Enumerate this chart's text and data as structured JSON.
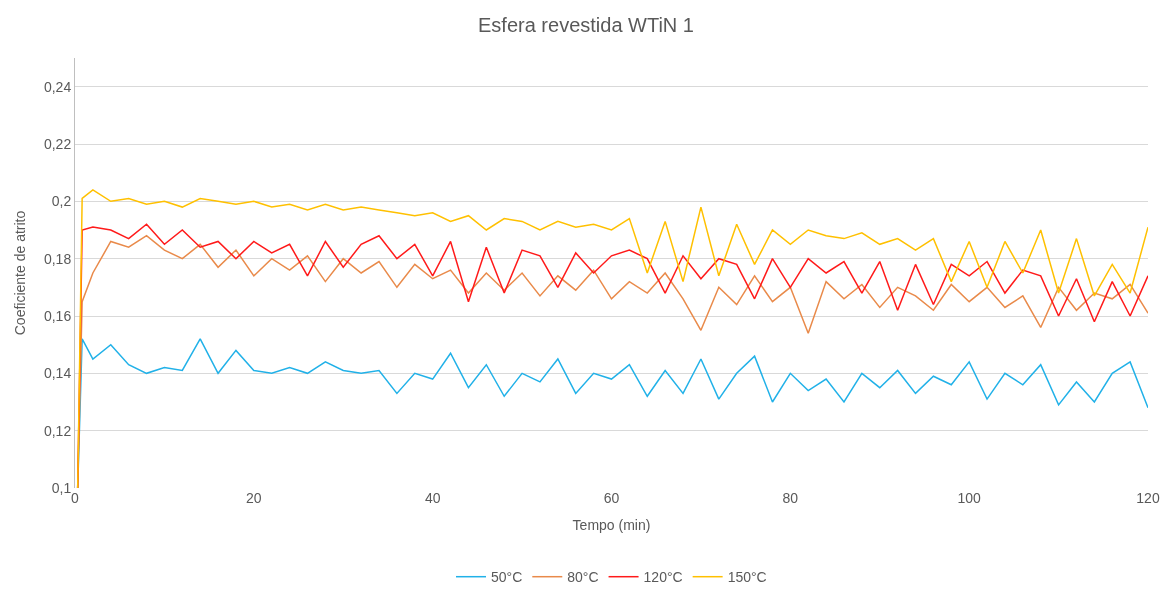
{
  "chart_data": {
    "type": "line",
    "title": "Esfera revestida WTiN 1",
    "xlabel": "Tempo (min)",
    "ylabel": "Coeficiente de atrito",
    "x": [
      0.3,
      0.8,
      2,
      4,
      6,
      8,
      10,
      12,
      14,
      16,
      18,
      20,
      22,
      24,
      26,
      28,
      30,
      32,
      34,
      36,
      38,
      40,
      42,
      44,
      46,
      48,
      50,
      52,
      54,
      56,
      58,
      60,
      62,
      64,
      66,
      68,
      70,
      72,
      74,
      76,
      78,
      80,
      82,
      84,
      86,
      88,
      90,
      92,
      94,
      96,
      98,
      100,
      102,
      104,
      106,
      108,
      110,
      112,
      114,
      116,
      118,
      120
    ],
    "series": [
      {
        "name": "50°C",
        "color": "#21b1e8",
        "values": [
          0.1,
          0.152,
          0.145,
          0.15,
          0.143,
          0.14,
          0.142,
          0.141,
          0.152,
          0.14,
          0.148,
          0.141,
          0.14,
          0.142,
          0.14,
          0.144,
          0.141,
          0.14,
          0.141,
          0.133,
          0.14,
          0.138,
          0.147,
          0.135,
          0.143,
          0.132,
          0.14,
          0.137,
          0.145,
          0.133,
          0.14,
          0.138,
          0.143,
          0.132,
          0.141,
          0.133,
          0.145,
          0.131,
          0.14,
          0.146,
          0.13,
          0.14,
          0.134,
          0.138,
          0.13,
          0.14,
          0.135,
          0.141,
          0.133,
          0.139,
          0.136,
          0.144,
          0.131,
          0.14,
          0.136,
          0.143,
          0.129,
          0.137,
          0.13,
          0.14,
          0.144,
          0.128
        ]
      },
      {
        "name": "80°C",
        "color": "#e98a4a",
        "values": [
          0.1,
          0.165,
          0.175,
          0.186,
          0.184,
          0.188,
          0.183,
          0.18,
          0.185,
          0.177,
          0.183,
          0.174,
          0.18,
          0.176,
          0.181,
          0.172,
          0.18,
          0.175,
          0.179,
          0.17,
          0.178,
          0.173,
          0.176,
          0.168,
          0.175,
          0.169,
          0.175,
          0.167,
          0.174,
          0.169,
          0.176,
          0.166,
          0.172,
          0.168,
          0.175,
          0.166,
          0.155,
          0.17,
          0.164,
          0.174,
          0.165,
          0.17,
          0.154,
          0.172,
          0.166,
          0.171,
          0.163,
          0.17,
          0.167,
          0.162,
          0.171,
          0.165,
          0.17,
          0.163,
          0.167,
          0.156,
          0.17,
          0.162,
          0.168,
          0.166,
          0.171,
          0.161
        ]
      },
      {
        "name": "120°C",
        "color": "#ff1a1a",
        "values": [
          0.1,
          0.19,
          0.191,
          0.19,
          0.187,
          0.192,
          0.185,
          0.19,
          0.184,
          0.186,
          0.18,
          0.186,
          0.182,
          0.185,
          0.174,
          0.186,
          0.177,
          0.185,
          0.188,
          0.18,
          0.185,
          0.174,
          0.186,
          0.165,
          0.184,
          0.168,
          0.183,
          0.181,
          0.17,
          0.182,
          0.175,
          0.181,
          0.183,
          0.18,
          0.168,
          0.181,
          0.173,
          0.18,
          0.178,
          0.166,
          0.18,
          0.17,
          0.18,
          0.175,
          0.179,
          0.168,
          0.179,
          0.162,
          0.178,
          0.164,
          0.178,
          0.174,
          0.179,
          0.168,
          0.176,
          0.174,
          0.16,
          0.173,
          0.158,
          0.172,
          0.16,
          0.174
        ]
      },
      {
        "name": "150°C",
        "color": "#ffc000",
        "values": [
          0.1,
          0.201,
          0.204,
          0.2,
          0.201,
          0.199,
          0.2,
          0.198,
          0.201,
          0.2,
          0.199,
          0.2,
          0.198,
          0.199,
          0.197,
          0.199,
          0.197,
          0.198,
          0.197,
          0.196,
          0.195,
          0.196,
          0.193,
          0.195,
          0.19,
          0.194,
          0.193,
          0.19,
          0.193,
          0.191,
          0.192,
          0.19,
          0.194,
          0.175,
          0.193,
          0.172,
          0.198,
          0.174,
          0.192,
          0.178,
          0.19,
          0.185,
          0.19,
          0.188,
          0.187,
          0.189,
          0.185,
          0.187,
          0.183,
          0.187,
          0.172,
          0.186,
          0.17,
          0.186,
          0.175,
          0.19,
          0.168,
          0.187,
          0.167,
          0.178,
          0.168,
          0.191
        ]
      }
    ],
    "xlim": [
      0,
      120
    ],
    "xticks": [
      0,
      20,
      40,
      60,
      80,
      100,
      120
    ],
    "ylim": [
      0.1,
      0.25
    ],
    "yticks": [
      {
        "value": 0.1,
        "label": "0,1"
      },
      {
        "value": 0.12,
        "label": "0,12"
      },
      {
        "value": 0.14,
        "label": "0,14"
      },
      {
        "value": 0.16,
        "label": "0,16"
      },
      {
        "value": 0.18,
        "label": "0,18"
      },
      {
        "value": 0.2,
        "label": "0,2"
      },
      {
        "value": 0.22,
        "label": "0,22"
      },
      {
        "value": 0.24,
        "label": "0,24"
      }
    ],
    "grid": "y",
    "legend": "bottom"
  }
}
